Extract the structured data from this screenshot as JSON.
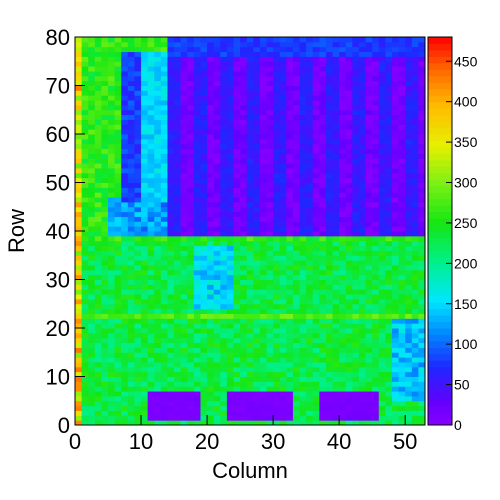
{
  "chart_data": {
    "type": "heatmap",
    "title": "",
    "xlabel": "Column",
    "ylabel": "Row",
    "xlim": [
      0,
      53
    ],
    "ylim": [
      0,
      80
    ],
    "zlim": [
      0,
      480
    ],
    "grid": false,
    "colorbar": "right",
    "palette": "rainbow (violet-blue-cyan-green-yellow-orange-red)",
    "x_ticks": [
      "0",
      "10",
      "20",
      "30",
      "40",
      "50"
    ],
    "y_ticks": [
      "0",
      "10",
      "20",
      "30",
      "40",
      "50",
      "60",
      "70",
      "80"
    ],
    "colorbar_ticks": [
      "0",
      "50",
      "100",
      "150",
      "200",
      "250",
      "300",
      "350",
      "400",
      "450"
    ],
    "regions_description_values": {
      "background_bottom": 230,
      "background_top_left": 260,
      "top_right_band": 15,
      "cold_columns": 60,
      "left_edge": 330,
      "pads_bottom": 5,
      "cyan_patches": 150
    }
  }
}
